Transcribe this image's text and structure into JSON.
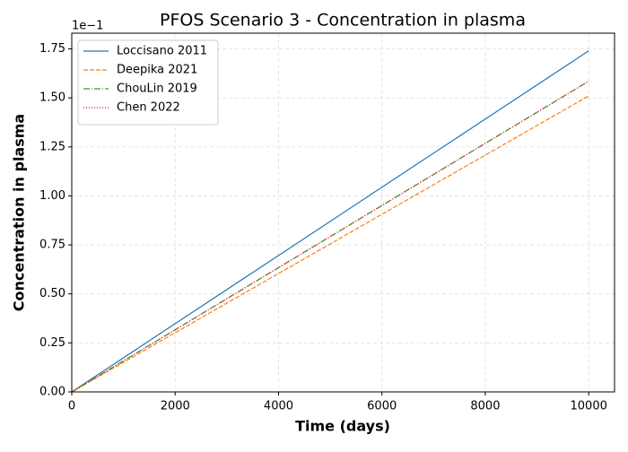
{
  "chart_data": {
    "type": "line",
    "title": "PFOS Scenario 3 - Concentration in plasma",
    "x_label": "Time (days)",
    "y_label": "Concentration in plasma",
    "y_offset_label": "1e−1",
    "x": [
      0,
      2000,
      4000,
      6000,
      8000,
      10000
    ],
    "series": [
      {
        "name": "Loccisano 2011",
        "color": "#1f77b4",
        "dash": "solid",
        "values": [
          0,
          0.348,
          0.696,
          1.044,
          1.392,
          1.74
        ]
      },
      {
        "name": "Deepika 2021",
        "color": "#ff7f0e",
        "dash": "dashed",
        "values": [
          0,
          0.302,
          0.604,
          0.906,
          1.208,
          1.51
        ]
      },
      {
        "name": "ChouLin 2019",
        "color": "#2ca02c",
        "dash": "dashdot",
        "values": [
          0,
          0.317,
          0.634,
          0.951,
          1.268,
          1.585
        ]
      },
      {
        "name": "Chen 2022",
        "color": "#d62728",
        "dash": "dotted",
        "values": [
          0,
          0.317,
          0.634,
          0.951,
          1.268,
          1.585
        ]
      }
    ],
    "xlim": [
      0,
      10500
    ],
    "ylim": [
      0,
      1.83
    ],
    "xticks": [
      0,
      2000,
      4000,
      6000,
      8000,
      10000
    ],
    "yticks": [
      {
        "value": 0,
        "label": "0.00"
      },
      0.25,
      {
        "value": 0.5,
        "label": "0.50"
      },
      0.75,
      {
        "value": 1,
        "label": "1.00"
      },
      1.25,
      {
        "value": 1.5,
        "label": "1.50"
      },
      1.75
    ],
    "grid": true,
    "legend": "upper left"
  }
}
